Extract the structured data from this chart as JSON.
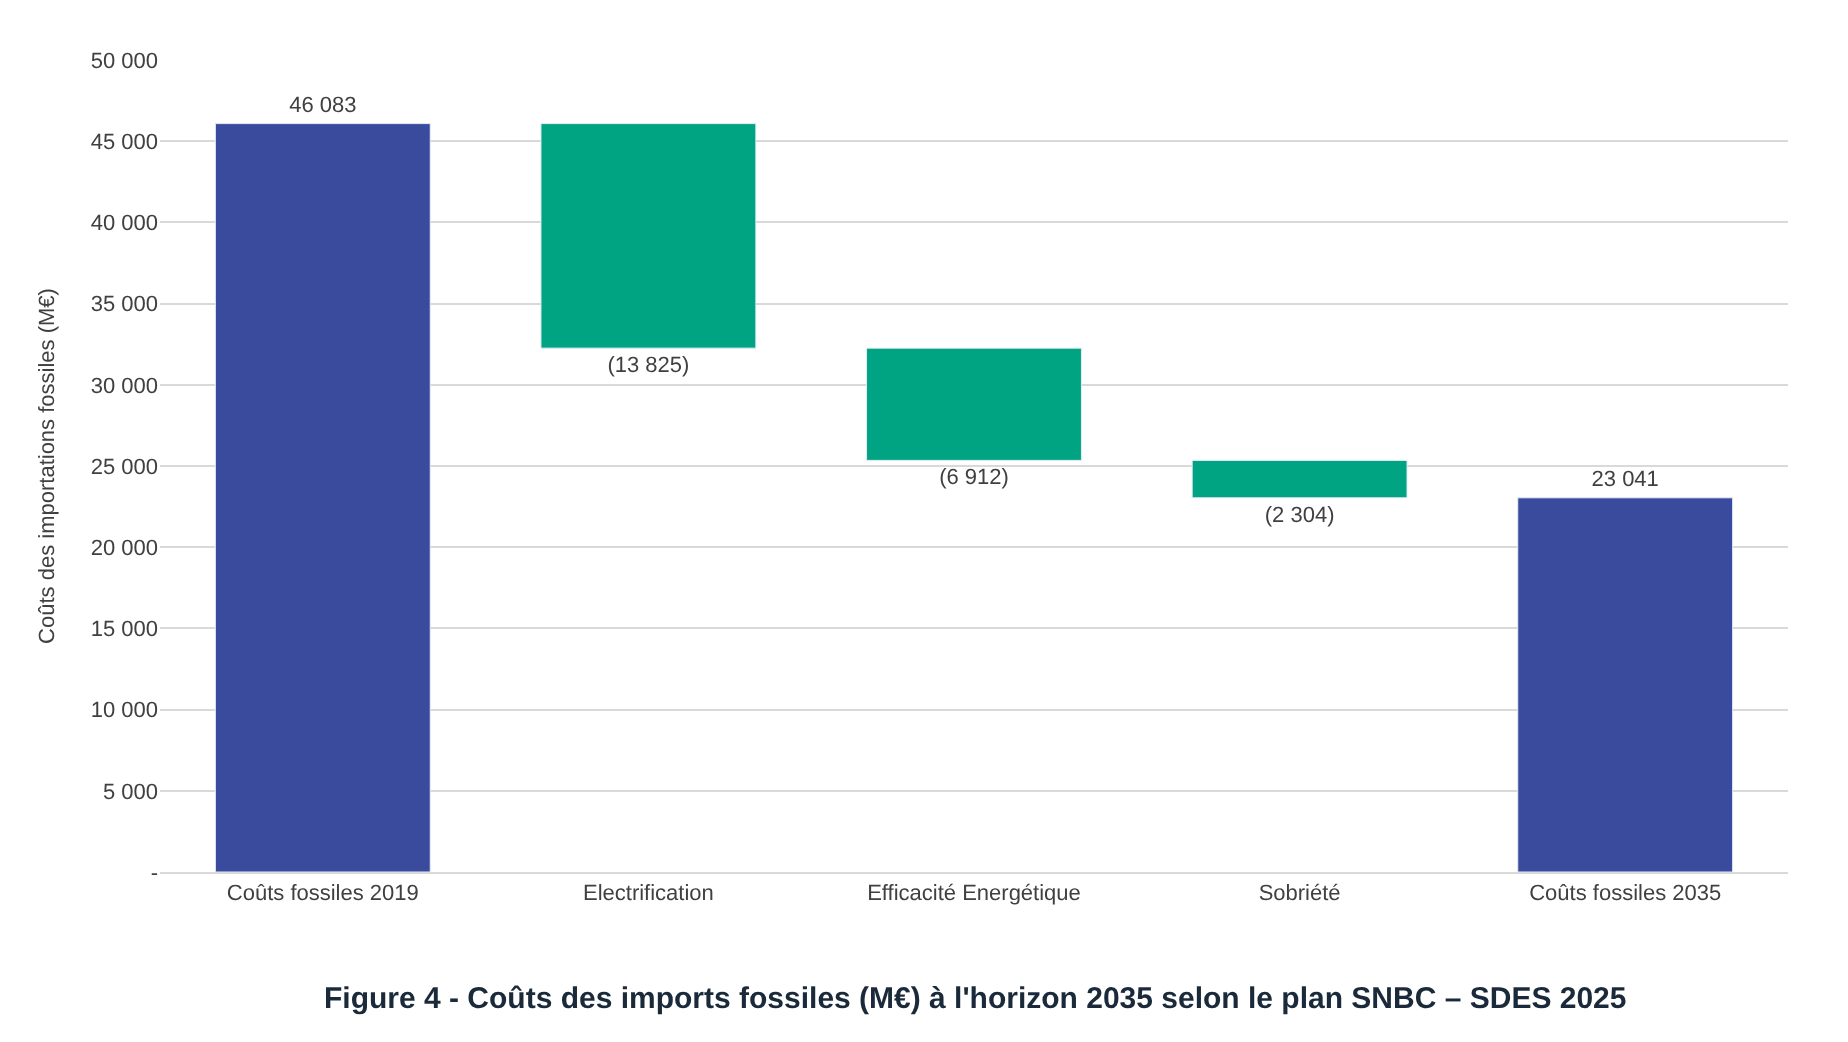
{
  "chart_data": {
    "type": "bar",
    "categories": [
      "Coûts fossiles 2019",
      "Electrification",
      "Efficacité Energétique",
      "Sobriété",
      "Coûts fossiles 2035"
    ],
    "values": [
      46083,
      -13825,
      -6912,
      -2304,
      23041
    ],
    "base": [
      0,
      46083,
      32258,
      25346,
      0
    ],
    "colors": [
      "#3a4a9c",
      "#00a382",
      "#00a382",
      "#00a382",
      "#3a4a9c"
    ],
    "value_labels": [
      "46 083",
      "(13 825)",
      "(6 912)",
      "(2 304)",
      "23 041"
    ],
    "ylabel": "Coûts des importations fossiles (M€)",
    "ylim": [
      0,
      50000
    ],
    "yticks": [
      {
        "value": 0,
        "label": "-"
      },
      {
        "value": 5000,
        "label": "5 000"
      },
      {
        "value": 10000,
        "label": "10 000"
      },
      {
        "value": 15000,
        "label": "15 000"
      },
      {
        "value": 20000,
        "label": "20 000"
      },
      {
        "value": 25000,
        "label": "25 000"
      },
      {
        "value": 30000,
        "label": "30 000"
      },
      {
        "value": 35000,
        "label": "35 000"
      },
      {
        "value": 40000,
        "label": "40 000"
      },
      {
        "value": 45000,
        "label": "45 000"
      },
      {
        "value": 50000,
        "label": "50 000"
      }
    ],
    "grid": "y",
    "annotations": [
      "Figure 4 - Coûts des imports fossiles (M€) à l'horizon 2035 selon le plan SNBC – SDES 2025"
    ]
  }
}
